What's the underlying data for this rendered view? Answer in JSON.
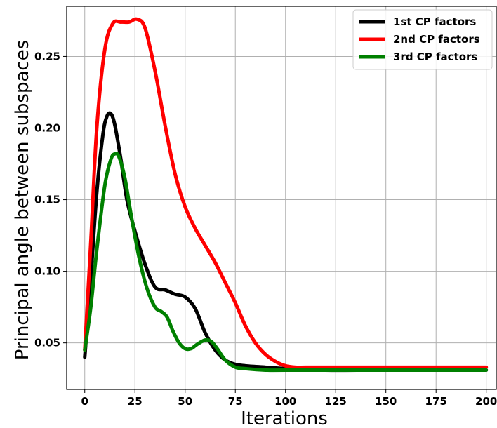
{
  "chart_data": {
    "type": "line",
    "title": "",
    "xlabel": "Iterations",
    "ylabel": "Principal angle between subspaces",
    "xlim": [
      -9,
      205
    ],
    "ylim": [
      0.0175,
      0.285
    ],
    "xticks": [
      0,
      25,
      50,
      75,
      100,
      125,
      150,
      175,
      200
    ],
    "xtick_labels": [
      "0",
      "25",
      "50",
      "75",
      "100",
      "125",
      "150",
      "175",
      "200"
    ],
    "yticks": [
      0.05,
      0.1,
      0.15,
      0.2,
      0.25
    ],
    "ytick_labels": [
      "0.05",
      "0.10",
      "0.15",
      "0.20",
      "0.25"
    ],
    "grid": true,
    "legend_position": "top-right",
    "series": [
      {
        "name": "1st CP factors",
        "color": "#000000",
        "x": [
          0,
          3,
          6,
          9,
          11,
          13,
          15,
          18,
          21,
          25,
          30,
          35,
          40,
          45,
          50,
          55,
          60,
          65,
          70,
          75,
          80,
          90,
          100,
          120,
          150,
          175,
          200
        ],
        "y": [
          0.04,
          0.095,
          0.155,
          0.195,
          0.208,
          0.21,
          0.202,
          0.178,
          0.15,
          0.128,
          0.105,
          0.089,
          0.087,
          0.084,
          0.082,
          0.074,
          0.057,
          0.045,
          0.038,
          0.035,
          0.034,
          0.033,
          0.032,
          0.031,
          0.031,
          0.031,
          0.031
        ]
      },
      {
        "name": "2nd CP factors",
        "color": "#ff0000",
        "x": [
          0,
          3,
          6,
          10,
          14,
          18,
          22,
          26,
          30,
          35,
          40,
          45,
          50,
          55,
          60,
          65,
          70,
          75,
          80,
          85,
          90,
          95,
          100,
          105,
          110,
          120,
          150,
          175,
          200
        ],
        "y": [
          0.045,
          0.12,
          0.2,
          0.255,
          0.273,
          0.274,
          0.274,
          0.276,
          0.27,
          0.24,
          0.202,
          0.168,
          0.145,
          0.13,
          0.118,
          0.106,
          0.092,
          0.078,
          0.062,
          0.05,
          0.042,
          0.037,
          0.034,
          0.033,
          0.033,
          0.033,
          0.033,
          0.033,
          0.033
        ]
      },
      {
        "name": "3rd CP factors",
        "color": "#008000",
        "x": [
          0,
          3,
          6,
          10,
          13,
          15,
          17,
          20,
          23,
          27,
          31,
          35,
          38,
          41,
          44,
          47,
          50,
          53,
          56,
          60,
          63,
          66,
          70,
          75,
          80,
          90,
          100,
          150,
          200
        ],
        "y": [
          0.045,
          0.075,
          0.115,
          0.16,
          0.178,
          0.182,
          0.18,
          0.165,
          0.14,
          0.11,
          0.088,
          0.075,
          0.072,
          0.068,
          0.058,
          0.05,
          0.046,
          0.046,
          0.049,
          0.052,
          0.051,
          0.046,
          0.038,
          0.033,
          0.032,
          0.031,
          0.031,
          0.031,
          0.031
        ]
      }
    ]
  }
}
